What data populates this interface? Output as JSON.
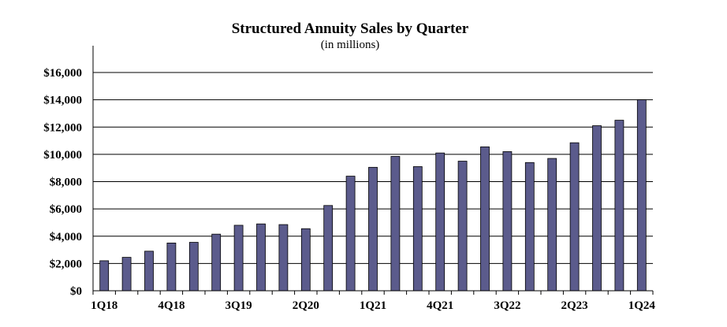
{
  "chart_data": {
    "type": "bar",
    "title": "Structured Annuity Sales by Quarter",
    "subtitle": "(in millions)",
    "xlabel": "",
    "ylabel": "",
    "ylim": [
      0,
      16000
    ],
    "yticks": [
      0,
      2000,
      4000,
      6000,
      8000,
      10000,
      12000,
      14000,
      16000
    ],
    "ytick_labels": [
      "$0",
      "$2,000",
      "$4,000",
      "$6,000",
      "$8,000",
      "$10,000",
      "$12,000",
      "$14,000",
      "$16,000"
    ],
    "grid": true,
    "legend": "none",
    "bar_color": "#5b5b8c",
    "categories": [
      "1Q18",
      "2Q18",
      "3Q18",
      "4Q18",
      "1Q19",
      "2Q19",
      "3Q19",
      "4Q19",
      "1Q20",
      "2Q20",
      "3Q20",
      "4Q20",
      "1Q21",
      "2Q21",
      "3Q21",
      "4Q21",
      "1Q22",
      "2Q22",
      "3Q22",
      "4Q22",
      "1Q23",
      "2Q23",
      "3Q23",
      "4Q23",
      "1Q24"
    ],
    "xtick_labels": [
      "1Q18",
      "4Q18",
      "3Q19",
      "2Q20",
      "1Q21",
      "4Q21",
      "3Q22",
      "2Q23",
      "1Q24"
    ],
    "values": [
      2200,
      2450,
      2900,
      3500,
      3550,
      4150,
      4800,
      4900,
      4850,
      4550,
      6250,
      8400,
      9050,
      9850,
      9100,
      10100,
      9500,
      10550,
      10200,
      9400,
      9700,
      10850,
      12100,
      12500,
      14000
    ]
  }
}
